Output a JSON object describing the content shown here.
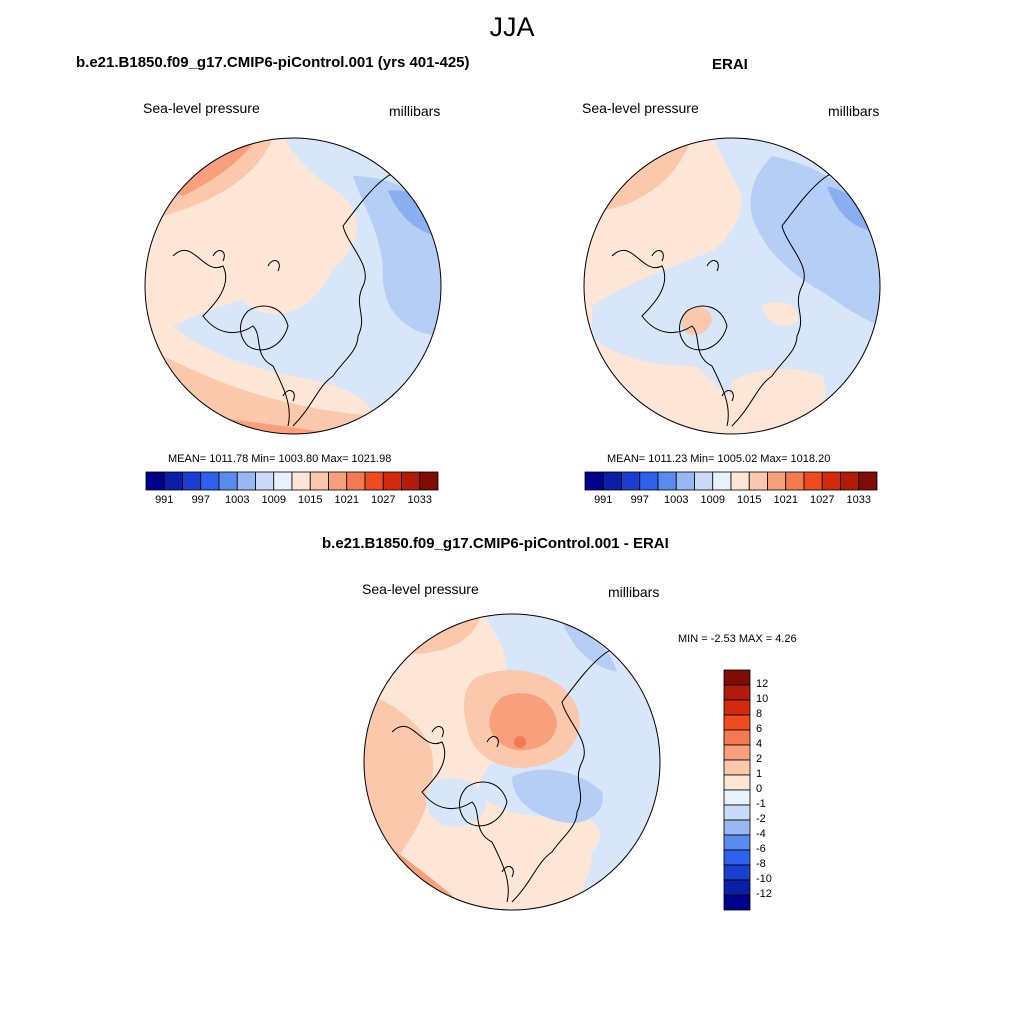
{
  "season": "JJA",
  "panels": {
    "model": {
      "title": "b.e21.B1850.f09_g17.CMIP6-piControl.001 (yrs 401-425)",
      "left_label": "Sea-level pressure",
      "right_label": "millibars",
      "stats": "MEAN= 1011.78  Min= 1003.80  Max= 1021.98"
    },
    "obs": {
      "title": "ERAI",
      "left_label": "Sea-level pressure",
      "right_label": "millibars",
      "stats": "MEAN= 1011.23  Min= 1005.02  Max= 1018.20"
    },
    "diff": {
      "title": "b.e21.B1850.f09_g17.CMIP6-piControl.001 - ERAI",
      "left_label": "Sea-level pressure",
      "right_label": "millibars",
      "stats": "MIN =  -2.53 MAX =   4.26"
    }
  },
  "colorbar_abs": {
    "colors": [
      "#00008c",
      "#0a1fa8",
      "#1a3fd0",
      "#2e61ee",
      "#5a8cf0",
      "#98b8f4",
      "#c8dcf8",
      "#e8f2fc",
      "#fde6d6",
      "#fbc8ac",
      "#f8a07c",
      "#f47a52",
      "#ee4c1e",
      "#d22a0a",
      "#b01c08",
      "#7e0c04"
    ],
    "tick_labels": [
      "991",
      "997",
      "1003",
      "1009",
      "1015",
      "1021",
      "1027",
      "1033"
    ]
  },
  "colorbar_diff": {
    "colors": [
      "#7e0c04",
      "#b01c08",
      "#d22a0a",
      "#ee4c1e",
      "#f47a52",
      "#f8a07c",
      "#fbc8ac",
      "#fde6d6",
      "#e8f2fc",
      "#c8dcf8",
      "#98b8f4",
      "#5a8cf0",
      "#2e61ee",
      "#1a3fd0",
      "#0a1fa8",
      "#00008c"
    ],
    "tick_labels": [
      "12",
      "10",
      "8",
      "6",
      "4",
      "2",
      "1",
      "0",
      "-1",
      "-2",
      "-4",
      "-6",
      "-8",
      "-10",
      "-12"
    ]
  },
  "map_colors": {
    "pos1": "#fde6d6",
    "pos2": "#fbc8ac",
    "pos3": "#f8a07c",
    "pos4": "#f47a52",
    "neg1": "#d8e6fa",
    "neg2": "#b4cef6",
    "neg3": "#8aaef0"
  }
}
